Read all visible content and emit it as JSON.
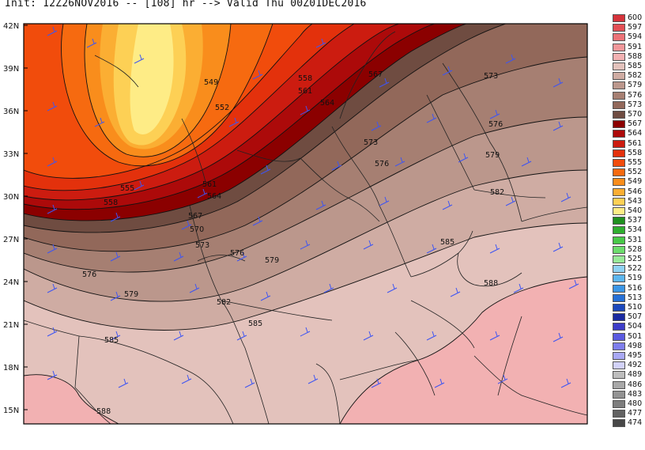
{
  "header": {
    "text": "Init: 12Z26NOV2016 -- [108] hr --> Valid Thu 00Z01DEC2016"
  },
  "lat_labels": [
    "42N",
    "39N",
    "36N",
    "33N",
    "30N",
    "27N",
    "24N",
    "21N",
    "18N",
    "15N"
  ],
  "contour_labels": [
    {
      "v": "549"
    },
    {
      "v": "552"
    },
    {
      "v": "555"
    },
    {
      "v": "558"
    },
    {
      "v": "558"
    },
    {
      "v": "561"
    },
    {
      "v": "561"
    },
    {
      "v": "564"
    },
    {
      "v": "564"
    },
    {
      "v": "567"
    },
    {
      "v": "567"
    },
    {
      "v": "570"
    },
    {
      "v": "573"
    },
    {
      "v": "573"
    },
    {
      "v": "573"
    },
    {
      "v": "576"
    },
    {
      "v": "576"
    },
    {
      "v": "576"
    },
    {
      "v": "576"
    },
    {
      "v": "579"
    },
    {
      "v": "579"
    },
    {
      "v": "579"
    },
    {
      "v": "582"
    },
    {
      "v": "582"
    },
    {
      "v": "585"
    },
    {
      "v": "585"
    },
    {
      "v": "585"
    },
    {
      "v": "588"
    },
    {
      "v": "588"
    }
  ],
  "legend": [
    {
      "v": "600",
      "c": "#d5333b"
    },
    {
      "v": "597",
      "c": "#e24f55"
    },
    {
      "v": "594",
      "c": "#ec7378"
    },
    {
      "v": "591",
      "c": "#f0979a"
    },
    {
      "v": "588",
      "c": "#f2b1b2"
    },
    {
      "v": "585",
      "c": "#e3c2bc"
    },
    {
      "v": "582",
      "c": "#cfaca3"
    },
    {
      "v": "579",
      "c": "#bb978c"
    },
    {
      "v": "576",
      "c": "#a67f72"
    },
    {
      "v": "573",
      "c": "#92685a"
    },
    {
      "v": "570",
      "c": "#6f4c41"
    },
    {
      "v": "567",
      "c": "#8b0000"
    },
    {
      "v": "564",
      "c": "#ac0a0a"
    },
    {
      "v": "561",
      "c": "#cc1c10"
    },
    {
      "v": "558",
      "c": "#e3310c"
    },
    {
      "v": "555",
      "c": "#f14c0c"
    },
    {
      "v": "552",
      "c": "#f66a10"
    },
    {
      "v": "549",
      "c": "#f98d1c"
    },
    {
      "v": "546",
      "c": "#fbae33"
    },
    {
      "v": "543",
      "c": "#fdd055"
    },
    {
      "v": "540",
      "c": "#feec86"
    },
    {
      "v": "537",
      "c": "#1f8f1f"
    },
    {
      "v": "534",
      "c": "#2fae2f"
    },
    {
      "v": "531",
      "c": "#48c848"
    },
    {
      "v": "528",
      "c": "#6cdc6c"
    },
    {
      "v": "525",
      "c": "#98ea98"
    },
    {
      "v": "522",
      "c": "#8fd2f4"
    },
    {
      "v": "519",
      "c": "#5cb6ee"
    },
    {
      "v": "516",
      "c": "#3b96e6"
    },
    {
      "v": "513",
      "c": "#2670d6"
    },
    {
      "v": "510",
      "c": "#1c48bc"
    },
    {
      "v": "507",
      "c": "#1a2aa0"
    },
    {
      "v": "504",
      "c": "#3d3dc8"
    },
    {
      "v": "501",
      "c": "#5b5be0"
    },
    {
      "v": "498",
      "c": "#7e7eec"
    },
    {
      "v": "495",
      "c": "#a9a9f4"
    },
    {
      "v": "492",
      "c": "#d2d2fa"
    },
    {
      "v": "489",
      "c": "#bdbdbd"
    },
    {
      "v": "486",
      "c": "#a8a8a8"
    },
    {
      "v": "483",
      "c": "#939393"
    },
    {
      "v": "480",
      "c": "#7e7e7e"
    },
    {
      "v": "477",
      "c": "#626262"
    },
    {
      "v": "474",
      "c": "#474747"
    }
  ]
}
